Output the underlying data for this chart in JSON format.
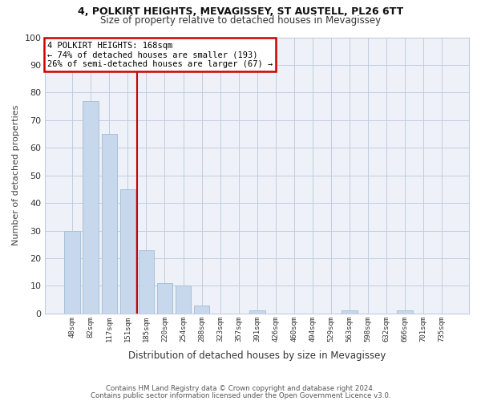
{
  "title1": "4, POLKIRT HEIGHTS, MEVAGISSEY, ST AUSTELL, PL26 6TT",
  "title2": "Size of property relative to detached houses in Mevagissey",
  "xlabel": "Distribution of detached houses by size in Mevagissey",
  "ylabel": "Number of detached properties",
  "categories": [
    "48sqm",
    "82sqm",
    "117sqm",
    "151sqm",
    "185sqm",
    "220sqm",
    "254sqm",
    "288sqm",
    "323sqm",
    "357sqm",
    "391sqm",
    "426sqm",
    "460sqm",
    "494sqm",
    "529sqm",
    "563sqm",
    "598sqm",
    "632sqm",
    "666sqm",
    "701sqm",
    "735sqm"
  ],
  "values": [
    30,
    77,
    65,
    45,
    23,
    11,
    10,
    3,
    0,
    0,
    1,
    0,
    0,
    0,
    0,
    1,
    0,
    0,
    1,
    0,
    0
  ],
  "bar_color": "#c8d8ec",
  "bar_edge_color": "#a8c0d8",
  "grid_color": "#c0cce0",
  "red_line_x": 3.5,
  "annotation_line1": "4 POLKIRT HEIGHTS: 168sqm",
  "annotation_line2": "← 74% of detached houses are smaller (193)",
  "annotation_line3": "26% of semi-detached houses are larger (67) →",
  "annotation_box_color": "#ffffff",
  "annotation_text_color": "#000000",
  "red_color": "#cc0000",
  "ylim": [
    0,
    100
  ],
  "yticks": [
    0,
    10,
    20,
    30,
    40,
    50,
    60,
    70,
    80,
    90,
    100
  ],
  "footnote1": "Contains HM Land Registry data © Crown copyright and database right 2024.",
  "footnote2": "Contains public sector information licensed under the Open Government Licence v3.0.",
  "bg_color": "#ffffff",
  "plot_bg_color": "#eef2f8"
}
